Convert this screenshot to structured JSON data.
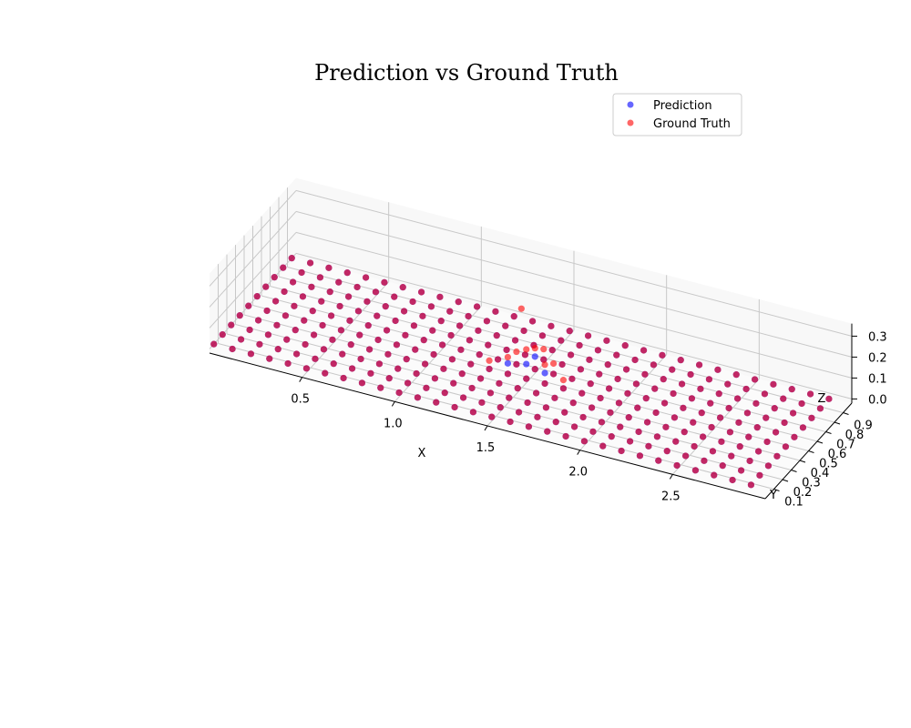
{
  "chart_data": {
    "type": "scatter",
    "title": "Prediction vs Ground Truth",
    "xlabel": "X",
    "ylabel": "Y",
    "zlabel": "Z",
    "projection": "3d",
    "xlim": [
      0.0,
      3.0
    ],
    "ylim": [
      0.0,
      1.0
    ],
    "zlim": [
      -0.02,
      0.36
    ],
    "xticks": [
      "0.5",
      "1.0",
      "1.5",
      "2.0",
      "2.5"
    ],
    "yticks": [
      "0.1",
      "0.2",
      "0.3",
      "0.4",
      "0.5",
      "0.6",
      "0.7",
      "0.8",
      "0.9"
    ],
    "zticks": [
      "0.0",
      "0.1",
      "0.2",
      "0.3"
    ],
    "grid": true,
    "legend_position": "top-right",
    "grid_points": {
      "x_start": 0.0,
      "x_step": 0.1,
      "x_count": 30,
      "y_start": 0.05,
      "y_step": 0.1,
      "y_count": 10,
      "z_base": 0.0
    },
    "series": [
      {
        "name": "Prediction",
        "color": "#0000ff",
        "alpha": 0.6,
        "values_note": "",
        "bump": [
          {
            "x": 1.4,
            "y": 0.45,
            "z": 0.05
          },
          {
            "x": 1.5,
            "y": 0.45,
            "z": 0.07
          },
          {
            "x": 1.5,
            "y": 0.55,
            "z": 0.06
          },
          {
            "x": 1.6,
            "y": 0.45,
            "z": 0.05
          }
        ]
      },
      {
        "name": "Ground Truth",
        "color": "#ff0000",
        "alpha": 0.6,
        "bump": [
          {
            "x": 1.3,
            "y": 0.45,
            "z": 0.04
          },
          {
            "x": 1.4,
            "y": 0.45,
            "z": 0.08
          },
          {
            "x": 1.4,
            "y": 0.55,
            "z": 0.06
          },
          {
            "x": 1.5,
            "y": 0.45,
            "z": 0.14
          },
          {
            "x": 1.5,
            "y": 0.55,
            "z": 0.1
          },
          {
            "x": 1.5,
            "y": 0.65,
            "z": 0.05
          },
          {
            "x": 1.6,
            "y": 0.45,
            "z": 0.09
          },
          {
            "x": 1.6,
            "y": 0.55,
            "z": 0.05
          },
          {
            "x": 1.7,
            "y": 0.45,
            "z": 0.04
          },
          {
            "x": 1.45,
            "y": 0.5,
            "z": 0.3
          }
        ]
      }
    ]
  }
}
